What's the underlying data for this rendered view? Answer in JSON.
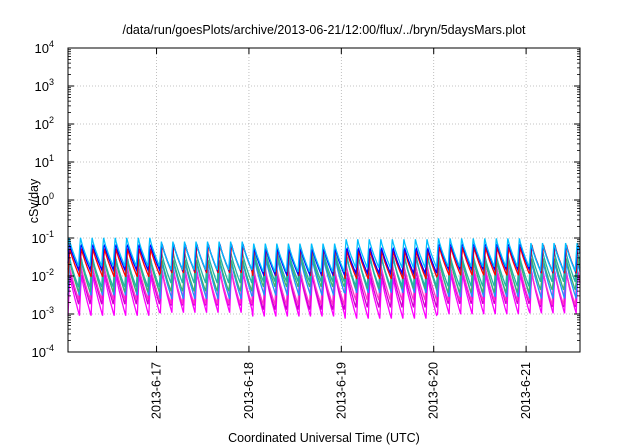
{
  "chart_data": {
    "type": "line",
    "title": "/data/run/goesPlots/archive/2013-06-21/12:00/flux/../bryn/5daysMars.plot",
    "xlabel": "Coordinated Universal Time (UTC)",
    "ylabel": "cSv/day",
    "y_scale": "log",
    "ylim": [
      0.0001,
      10000
    ],
    "y_ticks": [
      {
        "base": "10",
        "exp": "-4"
      },
      {
        "base": "10",
        "exp": "-3"
      },
      {
        "base": "10",
        "exp": "-2"
      },
      {
        "base": "10",
        "exp": "-1"
      },
      {
        "base": "10",
        "exp": "0"
      },
      {
        "base": "10",
        "exp": "1"
      },
      {
        "base": "10",
        "exp": "2"
      },
      {
        "base": "10",
        "exp": "3"
      },
      {
        "base": "10",
        "exp": "4"
      }
    ],
    "xlim": [
      "2013-06-16 01:00",
      "2013-06-21 14:00"
    ],
    "x_ticks": [
      "2013-6-17",
      "2013-6-18",
      "2013-6-19",
      "2013-6-20",
      "2013-6-21"
    ],
    "grid": true,
    "legend": "none",
    "sawtooth_period_hours": 3,
    "series": [
      {
        "color": "#ff00ff",
        "peak_cSv_per_day": 0.012,
        "trough_cSv_per_day": 0.0009
      },
      {
        "color": "#cc00cc",
        "peak_cSv_per_day": 0.016,
        "trough_cSv_per_day": 0.0014
      },
      {
        "color": "#ff33cc",
        "peak_cSv_per_day": 0.02,
        "trough_cSv_per_day": 0.002
      },
      {
        "color": "#1e90ff",
        "peak_cSv_per_day": 0.03,
        "trough_cSv_per_day": 0.003
      },
      {
        "color": "#3cb371",
        "peak_cSv_per_day": 0.035,
        "trough_cSv_per_day": 0.004
      },
      {
        "color": "#20b2aa",
        "peak_cSv_per_day": 0.045,
        "trough_cSv_per_day": 0.006
      },
      {
        "color": "#ff0000",
        "peak_cSv_per_day": 0.06,
        "trough_cSv_per_day": 0.01
      },
      {
        "color": "#0000ff",
        "peak_cSv_per_day": 0.07,
        "trough_cSv_per_day": 0.012
      },
      {
        "color": "#00bfff",
        "peak_cSv_per_day": 0.09,
        "trough_cSv_per_day": 0.015
      }
    ]
  }
}
